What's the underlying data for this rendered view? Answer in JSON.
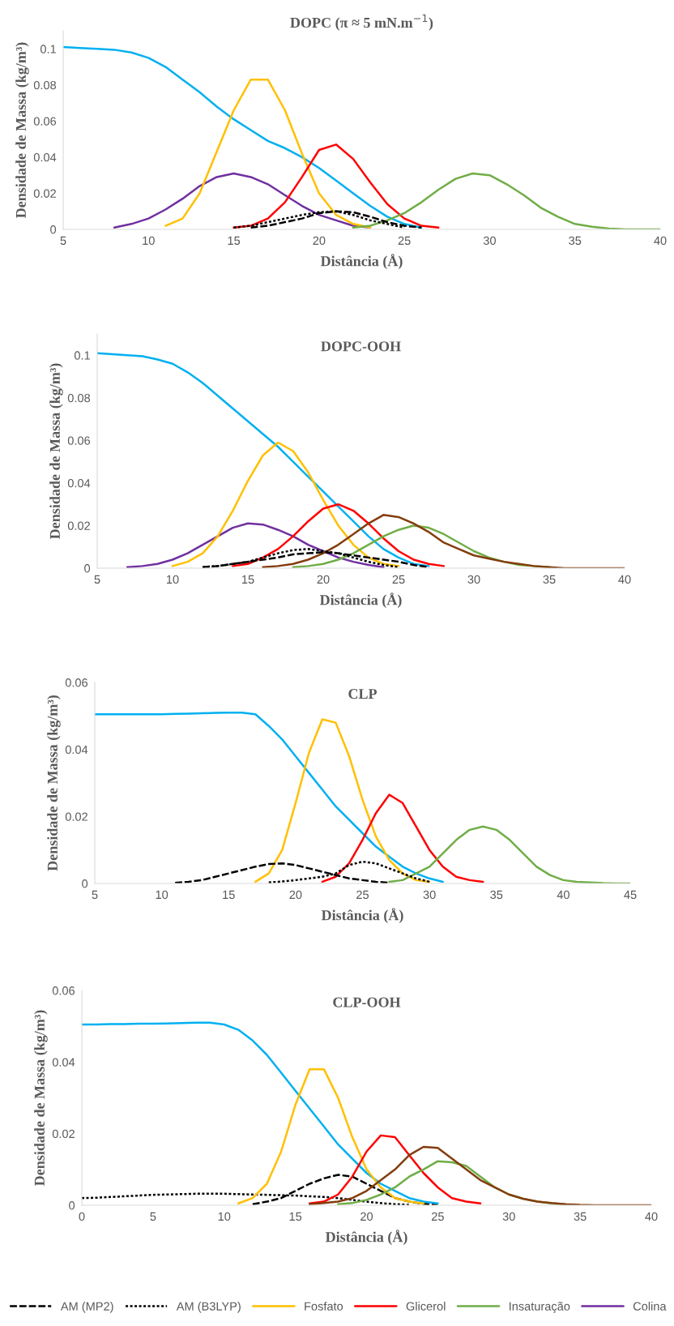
{
  "chart_data": [
    {
      "type": "line",
      "title": "DOPC (π ≈ 5 mN.m$^{−1}$)",
      "xlabel": "Distância (Å)",
      "ylabel": "Densidade de Massa (kg/m³)",
      "xlim": [
        5,
        40
      ],
      "xticks": [
        5,
        10,
        15,
        20,
        25,
        30,
        35,
        40
      ],
      "ylim": [
        0,
        0.11
      ],
      "yticks": [
        0,
        0.02,
        0.04,
        0.06,
        0.08,
        0.1
      ],
      "grid": false,
      "legend": false,
      "x": [
        5,
        6,
        7,
        8,
        9,
        10,
        11,
        12,
        13,
        14,
        15,
        16,
        17,
        18,
        19,
        20,
        21,
        22,
        23,
        24,
        25,
        26,
        27,
        28,
        29,
        30,
        31,
        32,
        33,
        34,
        35,
        36,
        37,
        38,
        39,
        40
      ],
      "series": [
        {
          "color": "#00b0f0",
          "values": [
            0.101,
            0.1005,
            0.1,
            0.0995,
            0.098,
            0.095,
            0.09,
            0.083,
            0.076,
            0.068,
            0.061,
            0.055,
            0.049,
            0.045,
            0.04,
            0.034,
            0.027,
            0.02,
            0.013,
            0.007,
            0.003,
            0.001,
            null,
            null,
            null,
            null,
            null,
            null,
            null,
            null,
            null,
            null,
            null,
            null,
            null,
            null
          ]
        },
        {
          "color": "#7030a0",
          "values": [
            null,
            null,
            null,
            0.001,
            0.003,
            0.006,
            0.011,
            0.017,
            0.024,
            0.029,
            0.031,
            0.029,
            0.025,
            0.019,
            0.013,
            0.008,
            0.005,
            0.002,
            0.001,
            null,
            null,
            null,
            null,
            null,
            null,
            null,
            null,
            null,
            null,
            null,
            null,
            null,
            null,
            null,
            null,
            null
          ]
        },
        {
          "color": "#ffc000",
          "values": [
            null,
            null,
            null,
            null,
            null,
            null,
            0.002,
            0.006,
            0.02,
            0.043,
            0.066,
            0.083,
            0.083,
            0.066,
            0.042,
            0.02,
            0.008,
            0.003,
            0.001,
            null,
            null,
            null,
            null,
            null,
            null,
            null,
            null,
            null,
            null,
            null,
            null,
            null,
            null,
            null,
            null,
            null
          ]
        },
        {
          "color": "#ff0000",
          "values": [
            null,
            null,
            null,
            null,
            null,
            null,
            null,
            null,
            null,
            null,
            0.001,
            0.002,
            0.006,
            0.015,
            0.029,
            0.044,
            0.047,
            0.039,
            0.026,
            0.014,
            0.006,
            0.002,
            0.001,
            null,
            null,
            null,
            null,
            null,
            null,
            null,
            null,
            null,
            null,
            null,
            null,
            null
          ]
        },
        {
          "color": "#70ad47",
          "values": [
            null,
            null,
            null,
            null,
            null,
            null,
            null,
            null,
            null,
            null,
            null,
            null,
            null,
            null,
            null,
            null,
            null,
            0.001,
            0.002,
            0.005,
            0.009,
            0.015,
            0.022,
            0.028,
            0.031,
            0.03,
            0.025,
            0.019,
            0.012,
            0.007,
            0.003,
            0.0015,
            0.0005,
            0,
            0,
            0
          ]
        },
        {
          "color": "#000000",
          "line_style": "dashed",
          "values": [
            null,
            null,
            null,
            null,
            null,
            null,
            null,
            null,
            null,
            null,
            null,
            0.001,
            0.002,
            0.004,
            0.006,
            0.009,
            0.01,
            0.0095,
            0.007,
            0.004,
            0.002,
            0.001,
            null,
            null,
            null,
            null,
            null,
            null,
            null,
            null,
            null,
            null,
            null,
            null,
            null,
            null
          ]
        },
        {
          "color": "#000000",
          "line_style": "dotted",
          "values": [
            null,
            null,
            null,
            null,
            null,
            null,
            null,
            null,
            null,
            null,
            0.001,
            0.002,
            0.004,
            0.006,
            0.008,
            0.0095,
            0.01,
            0.008,
            0.005,
            0.003,
            0.001,
            null,
            null,
            null,
            null,
            null,
            null,
            null,
            null,
            null,
            null,
            null,
            null,
            null,
            null,
            null
          ]
        }
      ]
    },
    {
      "type": "line",
      "title": "DOPC-OOH",
      "xlabel": "Distância (Å)",
      "ylabel": "Densidade de Massa (kg/m³)",
      "xlim": [
        5,
        40
      ],
      "xticks": [
        5,
        10,
        15,
        20,
        25,
        30,
        35,
        40
      ],
      "ylim": [
        0,
        0.11
      ],
      "yticks": [
        0,
        0.02,
        0.04,
        0.06,
        0.08,
        0.1
      ],
      "grid": false,
      "legend": false,
      "x": [
        5,
        6,
        7,
        8,
        9,
        10,
        11,
        12,
        13,
        14,
        15,
        16,
        17,
        18,
        19,
        20,
        21,
        22,
        23,
        24,
        25,
        26,
        27,
        28,
        29,
        30,
        31,
        32,
        33,
        34,
        35,
        36,
        37,
        38,
        39,
        40
      ],
      "series": [
        {
          "color": "#00b0f0",
          "values": [
            0.101,
            0.1005,
            0.1,
            0.0995,
            0.098,
            0.096,
            0.092,
            0.087,
            0.081,
            0.075,
            0.069,
            0.063,
            0.057,
            0.05,
            0.043,
            0.036,
            0.029,
            0.022,
            0.015,
            0.009,
            0.005,
            0.002,
            0.001,
            null,
            null,
            null,
            null,
            null,
            null,
            null,
            null,
            null,
            null,
            null,
            null,
            null
          ]
        },
        {
          "color": "#7030a0",
          "values": [
            null,
            null,
            0.0005,
            0.001,
            0.002,
            0.004,
            0.007,
            0.011,
            0.015,
            0.019,
            0.021,
            0.0205,
            0.018,
            0.015,
            0.011,
            0.008,
            0.005,
            0.003,
            0.0015,
            0.0005,
            null,
            null,
            null,
            null,
            null,
            null,
            null,
            null,
            null,
            null,
            null,
            null,
            null,
            null,
            null,
            null
          ]
        },
        {
          "color": "#ffc000",
          "values": [
            null,
            null,
            null,
            null,
            null,
            0.001,
            0.003,
            0.007,
            0.015,
            0.027,
            0.041,
            0.053,
            0.059,
            0.055,
            0.045,
            0.032,
            0.02,
            0.011,
            0.005,
            0.002,
            0.001,
            null,
            null,
            null,
            null,
            null,
            null,
            null,
            null,
            null,
            null,
            null,
            null,
            null,
            null,
            null
          ]
        },
        {
          "color": "#ff0000",
          "values": [
            null,
            null,
            null,
            null,
            null,
            null,
            null,
            null,
            null,
            0.001,
            0.002,
            0.005,
            0.009,
            0.015,
            0.022,
            0.028,
            0.03,
            0.027,
            0.021,
            0.014,
            0.008,
            0.004,
            0.002,
            0.001,
            null,
            null,
            null,
            null,
            null,
            null,
            null,
            null,
            null,
            null,
            null,
            null
          ]
        },
        {
          "color": "#70ad47",
          "values": [
            null,
            null,
            null,
            null,
            null,
            null,
            null,
            null,
            null,
            null,
            null,
            null,
            null,
            0.0005,
            0.001,
            0.002,
            0.004,
            0.007,
            0.011,
            0.015,
            0.018,
            0.02,
            0.019,
            0.016,
            0.012,
            0.008,
            0.005,
            0.003,
            0.0015,
            0.001,
            0.0005,
            null,
            null,
            null,
            null,
            null
          ]
        },
        {
          "color": "#843c0c",
          "values": [
            null,
            null,
            null,
            null,
            null,
            null,
            null,
            null,
            null,
            null,
            null,
            0.0005,
            0.001,
            0.002,
            0.004,
            0.007,
            0.011,
            0.016,
            0.021,
            0.025,
            0.024,
            0.021,
            0.017,
            0.012,
            0.009,
            0.006,
            0.0045,
            0.003,
            0.002,
            0.001,
            0.0005,
            0,
            0,
            0,
            0,
            0
          ]
        },
        {
          "color": "#000000",
          "line_style": "dashed",
          "values": [
            null,
            null,
            null,
            null,
            null,
            null,
            null,
            0.0005,
            0.001,
            0.002,
            0.003,
            0.004,
            0.005,
            0.0065,
            0.007,
            0.0075,
            0.007,
            0.006,
            0.005,
            0.004,
            0.003,
            0.0015,
            0.0005,
            null,
            null,
            null,
            null,
            null,
            null,
            null,
            null,
            null,
            null,
            null,
            null,
            null
          ]
        },
        {
          "color": "#000000",
          "line_style": "dotted",
          "values": [
            null,
            null,
            null,
            null,
            null,
            null,
            null,
            0.0005,
            0.001,
            0.002,
            0.003,
            0.005,
            0.007,
            0.0085,
            0.009,
            0.008,
            0.007,
            0.005,
            0.003,
            0.0015,
            0.0005,
            null,
            null,
            null,
            null,
            null,
            null,
            null,
            null,
            null,
            null,
            null,
            null,
            null,
            null,
            null
          ]
        }
      ]
    },
    {
      "type": "line",
      "title": "CLP",
      "xlabel": "Distância (Å)",
      "ylabel": "Densidade de Massa (kg/m³)",
      "xlim": [
        5,
        45
      ],
      "xticks": [
        5,
        10,
        15,
        20,
        25,
        30,
        35,
        40,
        45
      ],
      "ylim": [
        0,
        0.06
      ],
      "yticks": [
        0,
        0.02,
        0.04,
        0.06
      ],
      "grid": false,
      "legend": false,
      "x": [
        5,
        6,
        7,
        8,
        9,
        10,
        11,
        12,
        13,
        14,
        15,
        16,
        17,
        18,
        19,
        20,
        21,
        22,
        23,
        24,
        25,
        26,
        27,
        28,
        29,
        30,
        31,
        32,
        33,
        34,
        35,
        36,
        37,
        38,
        39,
        40,
        41,
        42,
        43,
        44,
        45
      ],
      "series": [
        {
          "color": "#00b0f0",
          "values": [
            0.0505,
            0.0505,
            0.0505,
            0.0505,
            0.0505,
            0.0505,
            0.0506,
            0.0507,
            0.0508,
            0.0509,
            0.051,
            0.051,
            0.0505,
            0.047,
            0.043,
            0.038,
            0.033,
            0.028,
            0.023,
            0.019,
            0.015,
            0.011,
            0.008,
            0.005,
            0.003,
            0.0015,
            0.0005,
            null,
            null,
            null,
            null,
            null,
            null,
            null,
            null,
            null,
            null,
            null,
            null,
            null,
            null
          ]
        },
        {
          "color": "#ffc000",
          "values": [
            null,
            null,
            null,
            null,
            null,
            null,
            null,
            null,
            null,
            null,
            null,
            null,
            0.0005,
            0.003,
            0.01,
            0.024,
            0.039,
            0.049,
            0.048,
            0.038,
            0.025,
            0.014,
            0.007,
            0.003,
            0.001,
            0.0005,
            null,
            null,
            null,
            null,
            null,
            null,
            null,
            null,
            null,
            null,
            null,
            null,
            null,
            null,
            null
          ]
        },
        {
          "color": "#ff0000",
          "values": [
            null,
            null,
            null,
            null,
            null,
            null,
            null,
            null,
            null,
            null,
            null,
            null,
            null,
            null,
            null,
            null,
            null,
            0.0005,
            0.002,
            0.006,
            0.013,
            0.021,
            0.0265,
            0.024,
            0.017,
            0.01,
            0.005,
            0.002,
            0.001,
            0.0005,
            null,
            null,
            null,
            null,
            null,
            null,
            null,
            null,
            null,
            null,
            null
          ]
        },
        {
          "color": "#70ad47",
          "values": [
            null,
            null,
            null,
            null,
            null,
            null,
            null,
            null,
            null,
            null,
            null,
            null,
            null,
            null,
            null,
            null,
            null,
            null,
            null,
            null,
            null,
            null,
            0.0005,
            0.001,
            0.003,
            0.005,
            0.009,
            0.013,
            0.016,
            0.017,
            0.016,
            0.013,
            0.009,
            0.005,
            0.0025,
            0.001,
            0.0005,
            0.0003,
            0.0001,
            0,
            0
          ]
        },
        {
          "color": "#000000",
          "line_style": "dashed",
          "values": [
            null,
            null,
            null,
            null,
            null,
            null,
            0.0002,
            0.0005,
            0.001,
            0.002,
            0.003,
            0.004,
            0.005,
            0.0058,
            0.006,
            0.0055,
            0.0045,
            0.0035,
            0.0025,
            0.0015,
            0.001,
            0.0005,
            0.0002,
            null,
            null,
            null,
            null,
            null,
            null,
            null,
            null,
            null,
            null,
            null,
            null,
            null,
            null,
            null,
            null,
            null,
            null
          ]
        },
        {
          "color": "#000000",
          "line_style": "dotted",
          "values": [
            null,
            null,
            null,
            null,
            null,
            null,
            null,
            null,
            null,
            null,
            null,
            null,
            null,
            0.0003,
            0.0006,
            0.001,
            0.0015,
            0.002,
            0.003,
            0.0055,
            0.0065,
            0.006,
            0.0045,
            0.003,
            0.0015,
            0.0005,
            null,
            null,
            null,
            null,
            null,
            null,
            null,
            null,
            null,
            null,
            null,
            null,
            null,
            null,
            null
          ]
        }
      ]
    },
    {
      "type": "line",
      "title": "CLP-OOH",
      "xlabel": "Distância (Å)",
      "ylabel": "Densidade de Massa (kg/m³)",
      "xlim": [
        0,
        40
      ],
      "xticks": [
        0,
        5,
        10,
        15,
        20,
        25,
        30,
        35,
        40
      ],
      "ylim": [
        0,
        0.06
      ],
      "yticks": [
        0,
        0.02,
        0.04,
        0.06
      ],
      "grid": false,
      "legend": "bottom",
      "x": [
        0,
        1,
        2,
        3,
        4,
        5,
        6,
        7,
        8,
        9,
        10,
        11,
        12,
        13,
        14,
        15,
        16,
        17,
        18,
        19,
        20,
        21,
        22,
        23,
        24,
        25,
        26,
        27,
        28,
        29,
        30,
        31,
        32,
        33,
        34,
        35,
        36,
        37,
        38,
        39,
        40
      ],
      "series": [
        {
          "name": "AM (MP2)",
          "color": "#000000",
          "line_style": "dashed",
          "values": [
            null,
            null,
            null,
            null,
            null,
            null,
            null,
            null,
            null,
            null,
            null,
            null,
            0.0003,
            0.001,
            0.002,
            0.004,
            0.006,
            0.0075,
            0.0085,
            0.008,
            0.006,
            0.004,
            0.002,
            0.001,
            0.0004,
            0.0001,
            null,
            null,
            null,
            null,
            null,
            null,
            null,
            null,
            null,
            null,
            null,
            null,
            null,
            null,
            null
          ]
        },
        {
          "name": "AM (B3LYP)",
          "color": "#000000",
          "line_style": "dotted",
          "values": [
            0.002,
            0.0021,
            0.0023,
            0.0025,
            0.0027,
            0.0029,
            0.003,
            0.0031,
            0.0032,
            0.0032,
            0.0032,
            0.0031,
            0.003,
            0.0029,
            0.0028,
            0.0027,
            0.0025,
            0.0023,
            0.002,
            0.0015,
            0.001,
            0.0006,
            0.0003,
            0.0001,
            null,
            null,
            null,
            null,
            null,
            null,
            null,
            null,
            null,
            null,
            null,
            null,
            null,
            null,
            null,
            null,
            null
          ]
        },
        {
          "color": "#00b0f0",
          "values": [
            0.0505,
            0.0505,
            0.0506,
            0.0506,
            0.0507,
            0.0507,
            0.0508,
            0.0509,
            0.051,
            0.051,
            0.0505,
            0.049,
            0.046,
            0.042,
            0.037,
            0.032,
            0.027,
            0.022,
            0.017,
            0.013,
            0.009,
            0.006,
            0.004,
            0.002,
            0.001,
            0.0005,
            null,
            null,
            null,
            null,
            null,
            null,
            null,
            null,
            null,
            null,
            null,
            null,
            null,
            null,
            null
          ]
        },
        {
          "name": "Fosfato",
          "color": "#ffc000",
          "values": [
            null,
            null,
            null,
            null,
            null,
            null,
            null,
            null,
            null,
            null,
            null,
            0.0005,
            0.002,
            0.006,
            0.015,
            0.028,
            0.038,
            0.038,
            0.03,
            0.019,
            0.01,
            0.005,
            0.002,
            0.001,
            0.0005,
            null,
            null,
            null,
            null,
            null,
            null,
            null,
            null,
            null,
            null,
            null,
            null,
            null,
            null,
            null,
            null
          ]
        },
        {
          "name": "Glicerol",
          "color": "#ff0000",
          "values": [
            null,
            null,
            null,
            null,
            null,
            null,
            null,
            null,
            null,
            null,
            null,
            null,
            null,
            null,
            null,
            null,
            0.0005,
            0.001,
            0.003,
            0.008,
            0.015,
            0.0195,
            0.019,
            0.014,
            0.009,
            0.005,
            0.002,
            0.001,
            0.0005,
            null,
            null,
            null,
            null,
            null,
            null,
            null,
            null,
            null,
            null,
            null,
            null
          ]
        },
        {
          "name": "Insaturação",
          "color": "#70ad47",
          "values": [
            null,
            null,
            null,
            null,
            null,
            null,
            null,
            null,
            null,
            null,
            null,
            null,
            null,
            null,
            null,
            null,
            null,
            null,
            0.0003,
            0.0006,
            0.0015,
            0.003,
            0.005,
            0.008,
            0.01,
            0.0123,
            0.012,
            0.011,
            0.008,
            0.005,
            0.003,
            0.0018,
            0.001,
            0.0005,
            0.0002,
            null,
            null,
            null,
            null,
            null,
            null
          ]
        },
        {
          "color": "#843c0c",
          "values": [
            null,
            null,
            null,
            null,
            null,
            null,
            null,
            null,
            null,
            null,
            null,
            null,
            null,
            null,
            null,
            null,
            0.0003,
            0.0006,
            0.001,
            0.002,
            0.004,
            0.007,
            0.01,
            0.014,
            0.0163,
            0.016,
            0.013,
            0.01,
            0.007,
            0.005,
            0.003,
            0.0018,
            0.001,
            0.0006,
            0.0003,
            0.0001,
            0,
            0,
            0,
            0,
            0
          ]
        },
        {
          "name": "Colina",
          "color": "#7030a0",
          "values": [
            null,
            null,
            null,
            null,
            null,
            null,
            null,
            null,
            null,
            null,
            null,
            null,
            null,
            null,
            null,
            null,
            null,
            null,
            null,
            null,
            null,
            null,
            null,
            null,
            null,
            null,
            null,
            null,
            null,
            null,
            null,
            null,
            null,
            null,
            null,
            null,
            null,
            null,
            null,
            null,
            null
          ]
        }
      ]
    }
  ]
}
